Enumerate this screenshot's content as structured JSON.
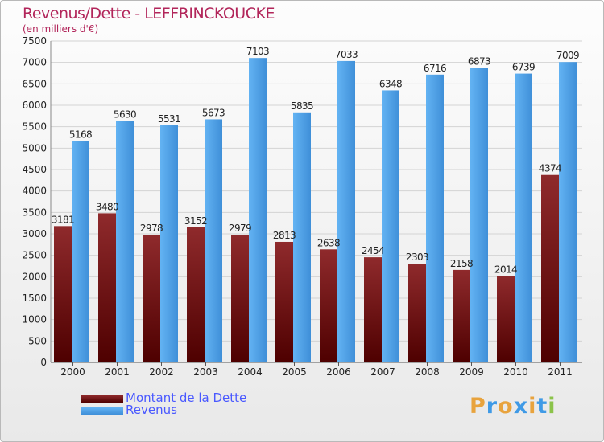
{
  "title": "Revenus/Dette - LEFFRINCKOUCKE",
  "subtitle": "(en milliers d'€)",
  "colors": {
    "dette": "#6b0f10",
    "revenus": "#3f9ae6",
    "title": "#b2255a",
    "legend_text": "#4a59ff"
  },
  "logo": {
    "letters": [
      "P",
      "r",
      "o",
      "x",
      "i",
      "t",
      "i"
    ],
    "colors": [
      "#e8a33d",
      "#3f9ae6",
      "#e8a33d",
      "#3f9ae6",
      "#e8a33d",
      "#3f9ae6",
      "#8bc34a"
    ]
  },
  "chart_data": {
    "type": "bar",
    "title": "Revenus/Dette - LEFFRINCKOUCKE",
    "ylabel": "(en milliers d'€)",
    "categories": [
      "2000",
      "2001",
      "2002",
      "2003",
      "2004",
      "2005",
      "2006",
      "2007",
      "2008",
      "2009",
      "2010",
      "2011"
    ],
    "series": [
      {
        "name": "Montant de la Dette",
        "values": [
          3181,
          3480,
          2978,
          3152,
          2979,
          2813,
          2638,
          2454,
          2303,
          2158,
          2014,
          4374
        ]
      },
      {
        "name": "Revenus",
        "values": [
          5168,
          5630,
          5531,
          5673,
          7103,
          5835,
          7033,
          6348,
          6716,
          6873,
          6739,
          7009
        ]
      }
    ],
    "yticks": [
      0,
      500,
      1000,
      1500,
      2000,
      2500,
      3000,
      3500,
      4000,
      4500,
      5000,
      5500,
      6000,
      6500,
      7000,
      7500
    ],
    "ylim": [
      0,
      7500
    ],
    "grid": true,
    "legend": "bottom-left"
  }
}
